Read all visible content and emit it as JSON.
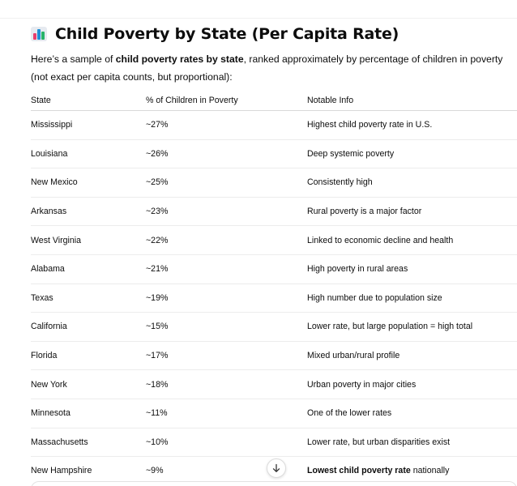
{
  "heading": {
    "icon": "bar-chart-icon",
    "title": "Child Poverty by State (Per Capita Rate)"
  },
  "intro": {
    "part1": "Here’s a sample of ",
    "bold": "child poverty rates by state",
    "part2": ", ranked approximately by percentage of children in poverty",
    "line2": "(not exact per capita counts, but proportional):"
  },
  "table": {
    "headers": [
      "State",
      "% of Children in Poverty",
      "Notable Info"
    ],
    "rows": [
      {
        "state": "Mississippi",
        "pct": "~27%",
        "info": "Highest child poverty rate in U.S."
      },
      {
        "state": "Louisiana",
        "pct": "~26%",
        "info": "Deep systemic poverty"
      },
      {
        "state": "New Mexico",
        "pct": "~25%",
        "info": "Consistently high"
      },
      {
        "state": "Arkansas",
        "pct": "~23%",
        "info": "Rural poverty is a major factor"
      },
      {
        "state": "West Virginia",
        "pct": "~22%",
        "info": "Linked to economic decline and health"
      },
      {
        "state": "Alabama",
        "pct": "~21%",
        "info": "High poverty in rural areas"
      },
      {
        "state": "Texas",
        "pct": "~19%",
        "info": "High number due to population size"
      },
      {
        "state": "California",
        "pct": "~15%",
        "info": "Lower rate, but large population = high total"
      },
      {
        "state": "Florida",
        "pct": "~17%",
        "info": "Mixed urban/rural profile"
      },
      {
        "state": "New York",
        "pct": "~18%",
        "info": "Urban poverty in major cities"
      },
      {
        "state": "Minnesota",
        "pct": "~11%",
        "info": "One of the lower rates"
      },
      {
        "state": "Massachusetts",
        "pct": "~10%",
        "info": "Lower rate, but urban disparities exist"
      }
    ],
    "last_row": {
      "state": "New Hampshire",
      "pct": "~9%",
      "info_bold": "Lowest child poverty rate",
      "info_rest": " nationally"
    }
  },
  "controls": {
    "scroll_icon": "arrow-down-icon"
  }
}
